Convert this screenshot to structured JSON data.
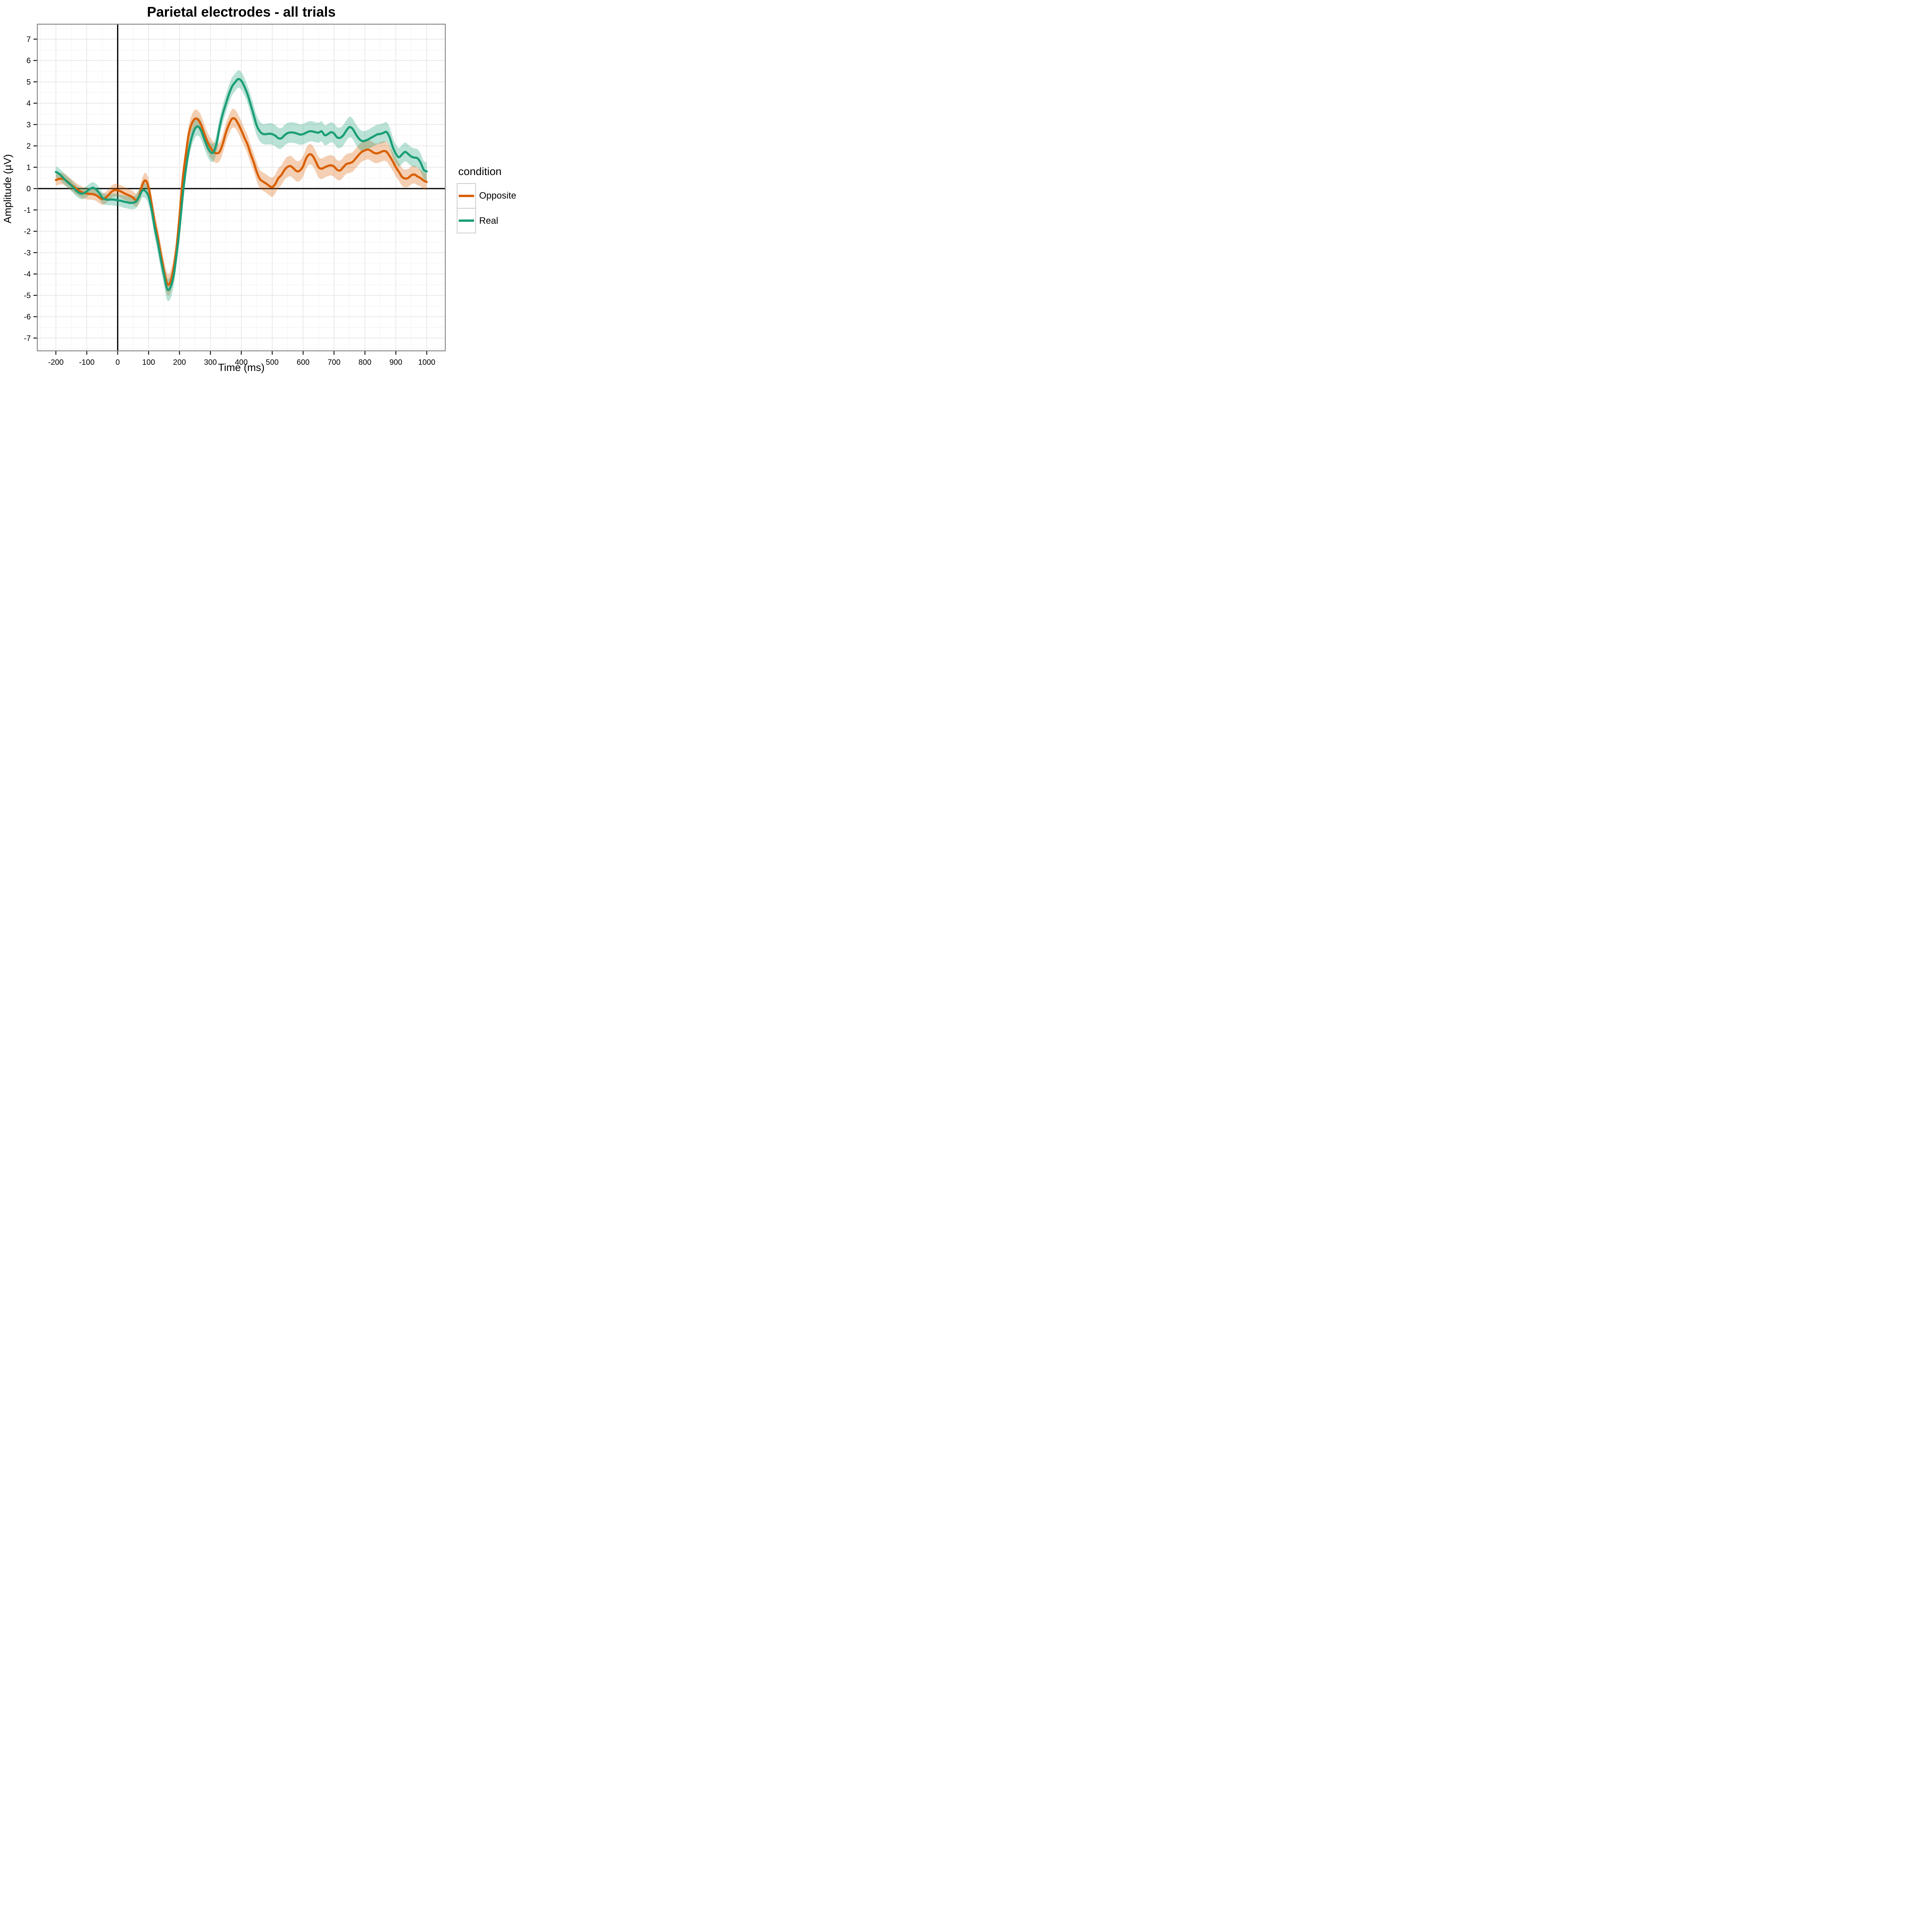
{
  "figure": {
    "title": "Parietal electrodes - all trials"
  },
  "legend": {
    "title": "condition",
    "entries": [
      {
        "label": "Opposite",
        "color": "#D95F02"
      },
      {
        "label": "Real",
        "color": "#1B9E77"
      }
    ]
  },
  "style": {
    "background": "#FFFFFF",
    "panel_background": "#FFFFFF",
    "panel_border": "#7F7F7F",
    "grid_major": "#E4E4E4",
    "grid_minor": "#F3F3F3",
    "zero_line": "#000000",
    "tick_color": "#000000",
    "ribbon_opacity": 0.3
  },
  "chart_data": {
    "type": "line",
    "title": "Parietal electrodes - all trials",
    "xlabel": "Time (ms)",
    "ylabel": "Amplitude (µV)",
    "x_unit": "ms",
    "y_unit": "µV",
    "x_start": -200,
    "x_step": 10,
    "xlim": [
      -260,
      1060
    ],
    "ylim": [
      -7.6,
      7.7
    ],
    "x_ticks": [
      -200,
      -100,
      0,
      100,
      200,
      300,
      400,
      500,
      600,
      700,
      800,
      900,
      1000
    ],
    "y_ticks": [
      -7,
      -6,
      -5,
      -4,
      -3,
      -2,
      -1,
      0,
      1,
      2,
      3,
      4,
      5,
      6,
      7
    ],
    "grid": "major and minor gridlines, solid, light gray",
    "legend_position": "right",
    "reference_lines": {
      "vline_x": 0,
      "hline_y": 0
    },
    "ribbon": "mean ± se shading around each line",
    "series": [
      {
        "name": "Opposite",
        "color": "#D95F02",
        "values": [
          0.4,
          0.45,
          0.47,
          0.41,
          0.3,
          0.17,
          0.06,
          -0.05,
          -0.14,
          -0.2,
          -0.23,
          -0.25,
          -0.26,
          -0.31,
          -0.41,
          -0.49,
          -0.44,
          -0.3,
          -0.15,
          -0.07,
          -0.08,
          -0.13,
          -0.21,
          -0.28,
          -0.34,
          -0.43,
          -0.54,
          -0.32,
          0.18,
          0.38,
          0.05,
          -0.75,
          -1.6,
          -2.3,
          -3.1,
          -3.85,
          -4.45,
          -4.4,
          -3.8,
          -2.8,
          -1.3,
          0.4,
          1.55,
          2.55,
          3.05,
          3.27,
          3.23,
          2.98,
          2.58,
          2.2,
          1.93,
          1.73,
          1.65,
          1.73,
          2.1,
          2.61,
          3.0,
          3.27,
          3.26,
          3.03,
          2.73,
          2.39,
          2.07,
          1.63,
          1.24,
          0.78,
          0.45,
          0.33,
          0.24,
          0.13,
          0.07,
          0.22,
          0.49,
          0.64,
          0.88,
          1.02,
          1.05,
          0.93,
          0.81,
          0.85,
          1.05,
          1.42,
          1.6,
          1.55,
          1.3,
          1.0,
          0.93,
          1.0,
          1.06,
          1.09,
          1.03,
          0.88,
          0.85,
          1.0,
          1.15,
          1.19,
          1.25,
          1.41,
          1.58,
          1.72,
          1.79,
          1.83,
          1.76,
          1.67,
          1.65,
          1.7,
          1.76,
          1.72,
          1.52,
          1.28,
          1.0,
          0.78,
          0.55,
          0.47,
          0.5,
          0.62,
          0.66,
          0.57,
          0.49,
          0.38,
          0.31
        ],
        "se": [
          0.27,
          0.27,
          0.27,
          0.27,
          0.27,
          0.27,
          0.27,
          0.27,
          0.27,
          0.27,
          0.27,
          0.27,
          0.27,
          0.27,
          0.27,
          0.27,
          0.27,
          0.27,
          0.28,
          0.29,
          0.29,
          0.29,
          0.3,
          0.3,
          0.3,
          0.31,
          0.32,
          0.33,
          0.34,
          0.36,
          0.38,
          0.42,
          0.45,
          0.46,
          0.47,
          0.48,
          0.5,
          0.5,
          0.48,
          0.46,
          0.44,
          0.42,
          0.42,
          0.42,
          0.42,
          0.42,
          0.42,
          0.44,
          0.45,
          0.45,
          0.45,
          0.45,
          0.45,
          0.44,
          0.44,
          0.44,
          0.44,
          0.44,
          0.43,
          0.43,
          0.43,
          0.43,
          0.43,
          0.43,
          0.43,
          0.43,
          0.43,
          0.43,
          0.43,
          0.44,
          0.45,
          0.45,
          0.46,
          0.46,
          0.47,
          0.48,
          0.48,
          0.48,
          0.48,
          0.48,
          0.48,
          0.48,
          0.48,
          0.48,
          0.48,
          0.48,
          0.48,
          0.48,
          0.48,
          0.48,
          0.48,
          0.46,
          0.46,
          0.46,
          0.46,
          0.46,
          0.46,
          0.46,
          0.46,
          0.46,
          0.46,
          0.46,
          0.46,
          0.46,
          0.46,
          0.46,
          0.46,
          0.46,
          0.45,
          0.44,
          0.43,
          0.42,
          0.42,
          0.42,
          0.42,
          0.42,
          0.42,
          0.41,
          0.4,
          0.4,
          0.39
        ]
      },
      {
        "name": "Real",
        "color": "#1B9E77",
        "values": [
          0.78,
          0.7,
          0.56,
          0.41,
          0.27,
          0.15,
          -0.02,
          -0.15,
          -0.23,
          -0.22,
          -0.13,
          -0.02,
          0.04,
          -0.04,
          -0.2,
          -0.42,
          -0.5,
          -0.52,
          -0.51,
          -0.52,
          -0.55,
          -0.57,
          -0.61,
          -0.64,
          -0.67,
          -0.66,
          -0.6,
          -0.36,
          -0.09,
          -0.12,
          -0.37,
          -1.0,
          -1.85,
          -2.55,
          -3.35,
          -4.05,
          -4.7,
          -4.65,
          -4.15,
          -3.15,
          -1.9,
          -0.4,
          0.85,
          1.8,
          2.42,
          2.8,
          2.91,
          2.72,
          2.33,
          1.96,
          1.72,
          1.7,
          2.13,
          2.9,
          3.5,
          3.97,
          4.42,
          4.78,
          4.98,
          5.13,
          5.05,
          4.78,
          4.42,
          3.95,
          3.45,
          2.95,
          2.68,
          2.56,
          2.55,
          2.57,
          2.55,
          2.48,
          2.36,
          2.36,
          2.5,
          2.6,
          2.63,
          2.62,
          2.58,
          2.53,
          2.55,
          2.62,
          2.68,
          2.68,
          2.64,
          2.62,
          2.68,
          2.5,
          2.55,
          2.64,
          2.58,
          2.4,
          2.38,
          2.5,
          2.72,
          2.88,
          2.8,
          2.56,
          2.35,
          2.23,
          2.24,
          2.3,
          2.38,
          2.46,
          2.54,
          2.56,
          2.61,
          2.65,
          2.4,
          1.95,
          1.63,
          1.47,
          1.6,
          1.72,
          1.62,
          1.5,
          1.45,
          1.42,
          1.22,
          0.89,
          0.8
        ],
        "se": [
          0.26,
          0.26,
          0.26,
          0.26,
          0.26,
          0.26,
          0.26,
          0.26,
          0.26,
          0.26,
          0.26,
          0.26,
          0.26,
          0.26,
          0.26,
          0.26,
          0.26,
          0.26,
          0.27,
          0.28,
          0.28,
          0.28,
          0.29,
          0.29,
          0.29,
          0.3,
          0.31,
          0.32,
          0.33,
          0.35,
          0.38,
          0.43,
          0.46,
          0.47,
          0.48,
          0.5,
          0.52,
          0.52,
          0.5,
          0.47,
          0.45,
          0.42,
          0.42,
          0.42,
          0.42,
          0.42,
          0.42,
          0.43,
          0.43,
          0.43,
          0.43,
          0.43,
          0.42,
          0.42,
          0.42,
          0.42,
          0.42,
          0.42,
          0.41,
          0.41,
          0.41,
          0.41,
          0.41,
          0.44,
          0.46,
          0.46,
          0.46,
          0.47,
          0.49,
          0.5,
          0.5,
          0.5,
          0.49,
          0.48,
          0.48,
          0.48,
          0.48,
          0.48,
          0.48,
          0.48,
          0.48,
          0.48,
          0.48,
          0.47,
          0.47,
          0.47,
          0.47,
          0.47,
          0.47,
          0.47,
          0.47,
          0.48,
          0.48,
          0.48,
          0.48,
          0.48,
          0.48,
          0.48,
          0.48,
          0.48,
          0.46,
          0.46,
          0.46,
          0.46,
          0.46,
          0.46,
          0.46,
          0.46,
          0.46,
          0.45,
          0.44,
          0.44,
          0.44,
          0.44,
          0.44,
          0.44,
          0.43,
          0.43,
          0.42,
          0.42,
          0.42
        ]
      }
    ]
  }
}
